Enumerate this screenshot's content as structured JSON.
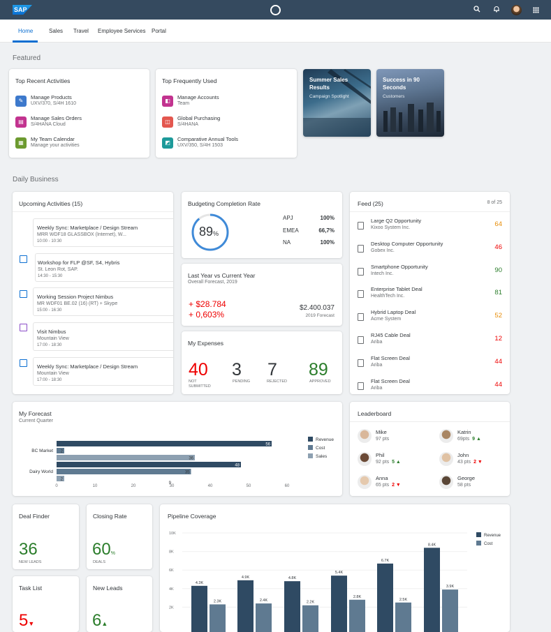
{
  "shell": {
    "logo": "SAP",
    "icons": [
      "search-icon",
      "notification-bell-icon",
      "user-avatar",
      "app-grid-icon"
    ]
  },
  "tabs": [
    "Home",
    "Sales",
    "Travel",
    "Employee Services",
    "Portal"
  ],
  "sections": {
    "featured": "Featured",
    "daily": "Daily Business"
  },
  "recent": {
    "title": "Top Recent Activities",
    "items": [
      {
        "t1": "Manage Products",
        "t2": "UXV/370, S/4H 1610",
        "color": "#3d79cc"
      },
      {
        "t1": "Manage Sales Orders",
        "t2": "S/4HANA Cloud",
        "color": "#c2338f"
      },
      {
        "t1": "My Team Calendar",
        "t2": "Manage your activities",
        "color": "#6c9a2f"
      }
    ]
  },
  "frequent": {
    "title": "Top Frequently Used",
    "items": [
      {
        "t1": "Manage Accounts",
        "t2": "Team",
        "color": "#c2338f"
      },
      {
        "t1": "Global Purchasing",
        "t2": "S/4HANA",
        "color": "#e3574f"
      },
      {
        "t1": "Comparative Annual Tools",
        "t2": "UXV/350, S/4H 1503",
        "color": "#1d9a9a"
      }
    ]
  },
  "tiles": [
    {
      "title": "Summer Sales Results",
      "sub": "Campaign Spotlight"
    },
    {
      "title": "Success in 90 Seconds",
      "sub": "Customers"
    }
  ],
  "upcoming": {
    "title": "Upcoming Activities (15)",
    "items": [
      {
        "t1": "Weekly Sync: Marketplace / Design Stream",
        "t2": "MRR WDF18 GLASSBOX (Internet), W...",
        "t3": "10:00 - 10:30"
      },
      {
        "t1": "Workshop for FLP @SF, S4, Hybris",
        "t2": "St. Leon Rot, SAP.",
        "t3": "14:30 - 15:30"
      },
      {
        "t1": "Working Session Project Nimbus",
        "t2": "MR WDF01 BE.02 (16) (RT) + Skype",
        "t3": "15:00 - 16:30"
      },
      {
        "t1": "Visit Nimbus",
        "t2": "Mountain View",
        "t3": "17:00 - 18:30"
      },
      {
        "t1": "Weekly Sync: Marketplace / Design Stream",
        "t2": "Mountain View",
        "t3": "17:00 - 18:30"
      }
    ]
  },
  "budget": {
    "title": "Budgeting Completion Rate",
    "percent": "89",
    "unit": "%",
    "fill": 0.89,
    "rows": [
      {
        "label": "APJ",
        "value": "100%"
      },
      {
        "label": "EMEA",
        "value": "66,7%"
      },
      {
        "label": "NA",
        "value": "100%"
      }
    ]
  },
  "lastyear": {
    "title": "Last Year vs Current Year",
    "sub": "Overall Forecast, 2019",
    "delta1": "+ $28.784",
    "delta2": "+ 0,603%",
    "total": "$2.400.037",
    "total_label": "2019 Forecast"
  },
  "expenses": {
    "title": "My Expenses",
    "items": [
      {
        "value": "40",
        "label": "NOT SUBMITTED",
        "color": "#e00"
      },
      {
        "value": "3",
        "label": "PENDING",
        "color": "#32363a"
      },
      {
        "value": "7",
        "label": "REJECTED",
        "color": "#32363a"
      },
      {
        "value": "89",
        "label": "APPROVED",
        "color": "#2b7d2b"
      }
    ]
  },
  "feed": {
    "title": "Feed (25)",
    "count": "8 of 25",
    "items": [
      {
        "t1": "Large Q2 Opportunity",
        "t2": "Kixoo System Inc.",
        "v": "64",
        "color": "#e78c07"
      },
      {
        "t1": "Desktop Computer Opportunity",
        "t2": "Gobex Inc.",
        "v": "46",
        "color": "#e00"
      },
      {
        "t1": "Smartphone Opportunity",
        "t2": "Intech Inc.",
        "v": "90",
        "color": "#2b7d2b"
      },
      {
        "t1": "Enterprise Tablet Deal",
        "t2": "HealthTech Inc.",
        "v": "81",
        "color": "#2b7d2b"
      },
      {
        "t1": "Hybrid Laptop Deal",
        "t2": "Acme System",
        "v": "52",
        "color": "#e78c07"
      },
      {
        "t1": "RJ45 Cable Deal",
        "t2": "Ariba",
        "v": "12",
        "color": "#e00"
      },
      {
        "t1": "Flat Screen Deal",
        "t2": "Ariba",
        "v": "44",
        "color": "#e00"
      },
      {
        "t1": "Flat Screen Deal",
        "t2": "Ariba",
        "v": "44",
        "color": "#e00"
      }
    ]
  },
  "forecast": {
    "title": "My Forecast",
    "sub": "Current Quarter"
  },
  "leaderboard": {
    "title": "Leaderboard",
    "items": [
      {
        "name": "Mike",
        "pts": "97 pts",
        "delta": "",
        "dir": ""
      },
      {
        "name": "Katrin",
        "pts": "69pts",
        "delta": "9",
        "dir": "up"
      },
      {
        "name": "Phil",
        "pts": "92 pts",
        "delta": "5",
        "dir": "up"
      },
      {
        "name": "John",
        "pts": "43 pts",
        "delta": "2",
        "dir": "down"
      },
      {
        "name": "Anna",
        "pts": "65 pts",
        "delta": "2",
        "dir": "down"
      },
      {
        "name": "George",
        "pts": "58 pts",
        "delta": "",
        "dir": ""
      }
    ]
  },
  "dealfinder": {
    "title": "Deal Finder",
    "value": "36",
    "label": "NEW LEADS"
  },
  "closing": {
    "title": "Closing Rate",
    "value": "60",
    "unit": "%",
    "label": "DEALS"
  },
  "tasklist": {
    "title": "Task List",
    "value": "5"
  },
  "newleads": {
    "title": "New Leads",
    "value": "6"
  },
  "pipeline": {
    "title": "Pipeline Coverage"
  },
  "chart_data": [
    {
      "type": "bar",
      "orientation": "horizontal",
      "categories": [
        "BC Market",
        "Dairy World"
      ],
      "series": [
        {
          "name": "Revenue",
          "values": [
            56,
            48
          ],
          "color": "#2f4a63"
        },
        {
          "name": "Cost",
          "values": [
            2,
            35
          ],
          "color": "#5f7a91"
        },
        {
          "name": "Sales",
          "values": [
            36,
            2
          ],
          "color": "#8da0b1"
        }
      ],
      "data_labels": [
        [
          "56",
          "2",
          "36"
        ],
        [
          "48",
          "35",
          "2"
        ]
      ],
      "xticks": [
        "0",
        "10",
        "20",
        "30",
        "40",
        "50",
        "60"
      ],
      "xticklabels_extra": [
        "9"
      ],
      "xlim": [
        0,
        60
      ],
      "legend": "right"
    },
    {
      "type": "bar",
      "categories": [
        "",
        "",
        "",
        "",
        "",
        ""
      ],
      "series": [
        {
          "name": "Revenue",
          "values": [
            4.3,
            4.9,
            4.8,
            5.4,
            6.7,
            8.4
          ],
          "labels": [
            "4.3K",
            "4.9K",
            "4.8K",
            "5.4K",
            "6.7K",
            "8.4K"
          ],
          "color": "#2f4a63"
        },
        {
          "name": "Cost",
          "values": [
            2.3,
            2.4,
            2.2,
            2.8,
            2.5,
            3.9
          ],
          "labels": [
            "2.3K",
            "2.4K",
            "2.2K",
            "2.8K",
            "2.5K",
            "3.9K"
          ],
          "color": "#5f7a91"
        }
      ],
      "yticks": [
        "10K",
        "8K",
        "6K",
        "4K",
        "2K"
      ],
      "ylim": [
        0,
        10
      ],
      "legend": "top-right"
    }
  ]
}
